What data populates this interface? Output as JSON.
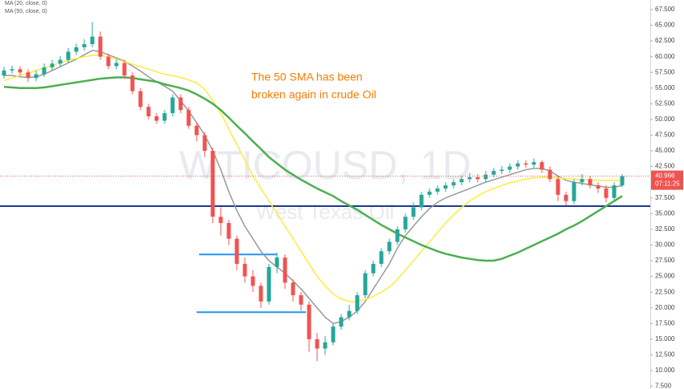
{
  "chart_data": {
    "type": "candlestick",
    "watermark": "WTICOUSD, 1D",
    "watermark_subtitle": "West Texas Oil",
    "annotation": [
      "The 50 SMA has been",
      "broken again in crude Oil"
    ],
    "annotation_color": "#f57c00",
    "up_color": "#26a69a",
    "down_color": "#ef5350",
    "ylim": [
      7.06,
      69.03
    ],
    "yticks": [
      {
        "value": 67.5,
        "label": "67.500"
      },
      {
        "value": 65,
        "label": "65.000"
      },
      {
        "value": 62.5,
        "label": "62.500"
      },
      {
        "value": 60,
        "label": "60.000"
      },
      {
        "value": 57.5,
        "label": "57.500"
      },
      {
        "value": 55,
        "label": "55.000"
      },
      {
        "value": 52.5,
        "label": "52.500"
      },
      {
        "value": 50,
        "label": "50.000"
      },
      {
        "value": 47.5,
        "label": "47.500"
      },
      {
        "value": 45,
        "label": "45.000"
      },
      {
        "value": 42.5,
        "label": "42.500"
      },
      {
        "value": 37.5,
        "label": "37.500"
      },
      {
        "value": 35,
        "label": "35.000"
      },
      {
        "value": 32.5,
        "label": "32.500"
      },
      {
        "value": 30,
        "label": "30.000"
      },
      {
        "value": 27.5,
        "label": "27.500"
      },
      {
        "value": 25,
        "label": "25.000"
      },
      {
        "value": 22.5,
        "label": "22.500"
      },
      {
        "value": 20,
        "label": "20.000"
      },
      {
        "value": 17.5,
        "label": "17.500"
      },
      {
        "value": 15,
        "label": "15.000"
      },
      {
        "value": 12.5,
        "label": "12.500"
      },
      {
        "value": 10,
        "label": "10.000"
      },
      {
        "value": 7.5,
        "label": "7.500"
      }
    ],
    "last_price": 40.966,
    "countdown": "07:11:25",
    "hlines": [
      {
        "value": 36.2,
        "color": "#1a3a8f"
      },
      {
        "value": 28.5,
        "color": "#2196f3"
      },
      {
        "value": 19.3,
        "color": "#2196f3"
      }
    ],
    "ohlc": [
      [
        57.0,
        58.4,
        56.5,
        57.8
      ],
      [
        57.8,
        58.6,
        57.3,
        58.0
      ],
      [
        58.0,
        58.5,
        57.0,
        57.5
      ],
      [
        57.5,
        58.0,
        56.0,
        56.6
      ],
      [
        56.6,
        57.8,
        56.1,
        57.2
      ],
      [
        57.2,
        58.9,
        56.8,
        58.3
      ],
      [
        58.3,
        59.5,
        57.8,
        58.9
      ],
      [
        58.9,
        60.1,
        58.4,
        59.5
      ],
      [
        59.5,
        61.4,
        59.0,
        60.8
      ],
      [
        60.8,
        62.1,
        60.3,
        61.5
      ],
      [
        61.5,
        62.8,
        61.0,
        62.0
      ],
      [
        62.0,
        65.5,
        61.5,
        63.2
      ],
      [
        63.2,
        64.0,
        59.5,
        60.0
      ],
      [
        60.0,
        60.5,
        58.0,
        58.5
      ],
      [
        58.5,
        59.6,
        58.0,
        59.0
      ],
      [
        59.0,
        59.5,
        56.5,
        57.0
      ],
      [
        57.0,
        57.5,
        54.0,
        54.5
      ],
      [
        54.5,
        55.0,
        51.5,
        52.0
      ],
      [
        52.0,
        52.5,
        50.0,
        50.5
      ],
      [
        50.5,
        51.0,
        49.3,
        49.8
      ],
      [
        49.8,
        51.5,
        49.3,
        51.0
      ],
      [
        51.0,
        54.0,
        50.5,
        53.5
      ],
      [
        53.5,
        54.0,
        51.0,
        51.5
      ],
      [
        51.5,
        52.0,
        48.5,
        49.0
      ],
      [
        49.0,
        49.5,
        46.5,
        47.5
      ],
      [
        47.5,
        48.0,
        44.0,
        45.0
      ],
      [
        45.0,
        45.5,
        33.5,
        34.5
      ],
      [
        34.5,
        36.0,
        31.5,
        33.5
      ],
      [
        33.5,
        34.0,
        30.0,
        31.0
      ],
      [
        31.0,
        31.5,
        26.0,
        27.0
      ],
      [
        27.0,
        28.0,
        24.0,
        25.0
      ],
      [
        25.0,
        26.0,
        22.5,
        23.5
      ],
      [
        23.5,
        24.0,
        20.0,
        21.0
      ],
      [
        21.0,
        27.0,
        20.5,
        26.5
      ],
      [
        26.5,
        28.8,
        25.5,
        28.0
      ],
      [
        28.0,
        28.5,
        23.0,
        24.0
      ],
      [
        24.0,
        24.5,
        21.0,
        22.0
      ],
      [
        22.0,
        22.5,
        19.5,
        20.5
      ],
      [
        20.5,
        21.0,
        13.0,
        15.0
      ],
      [
        15.0,
        16.0,
        11.5,
        13.5
      ],
      [
        13.5,
        15.5,
        12.5,
        14.5
      ],
      [
        14.5,
        17.5,
        14.0,
        17.0
      ],
      [
        17.0,
        19.0,
        16.5,
        18.5
      ],
      [
        18.5,
        20.5,
        18.0,
        19.5
      ],
      [
        19.5,
        22.5,
        19.0,
        22.0
      ],
      [
        22.0,
        26.0,
        21.5,
        25.5
      ],
      [
        25.5,
        27.5,
        25.0,
        27.0
      ],
      [
        27.0,
        29.5,
        26.5,
        29.0
      ],
      [
        29.0,
        31.0,
        28.5,
        30.5
      ],
      [
        30.5,
        33.0,
        30.0,
        32.5
      ],
      [
        32.5,
        35.0,
        32.0,
        34.5
      ],
      [
        34.5,
        36.8,
        34.0,
        36.0
      ],
      [
        36.0,
        38.5,
        35.5,
        38.0
      ],
      [
        38.0,
        39.0,
        37.5,
        38.5
      ],
      [
        38.5,
        39.5,
        38.0,
        39.0
      ],
      [
        39.0,
        40.0,
        38.5,
        39.5
      ],
      [
        39.5,
        40.5,
        39.0,
        40.0
      ],
      [
        40.0,
        41.0,
        39.5,
        40.5
      ],
      [
        40.5,
        41.5,
        40.0,
        40.8
      ],
      [
        40.8,
        41.3,
        40.0,
        40.5
      ],
      [
        40.5,
        41.8,
        40.0,
        41.2
      ],
      [
        41.2,
        42.3,
        40.8,
        41.8
      ],
      [
        41.8,
        42.6,
        41.3,
        42.0
      ],
      [
        42.0,
        43.0,
        41.5,
        42.5
      ],
      [
        42.5,
        43.5,
        42.0,
        43.0
      ],
      [
        43.0,
        43.5,
        42.3,
        42.8
      ],
      [
        42.8,
        43.8,
        42.3,
        43.2
      ],
      [
        43.2,
        43.5,
        41.5,
        42.0
      ],
      [
        42.0,
        42.5,
        40.0,
        40.5
      ],
      [
        40.5,
        41.0,
        37.0,
        38.0
      ],
      [
        38.0,
        38.5,
        36.3,
        37.0
      ],
      [
        37.0,
        40.5,
        36.5,
        40.0
      ],
      [
        40.0,
        41.3,
        39.5,
        40.5
      ],
      [
        40.5,
        41.0,
        39.0,
        39.5
      ],
      [
        39.5,
        40.0,
        38.3,
        39.0
      ],
      [
        39.0,
        39.5,
        36.8,
        37.5
      ],
      [
        37.5,
        40.0,
        37.0,
        39.5
      ],
      [
        39.5,
        41.3,
        39.2,
        40.966
      ]
    ],
    "series": [
      {
        "name": "MA (20, close, 0)",
        "color": "#999999",
        "values": [
          57.0,
          57.0,
          56.8,
          56.7,
          56.8,
          57.2,
          57.8,
          58.4,
          59.0,
          59.6,
          60.3,
          61.0,
          60.8,
          60.3,
          59.8,
          59.3,
          58.5,
          57.7,
          56.8,
          56.0,
          55.3,
          54.5,
          53.0,
          51.3,
          49.5,
          47.5,
          45.0,
          42.0,
          38.5,
          35.5,
          33.0,
          31.0,
          29.0,
          27.5,
          26.5,
          25.5,
          24.3,
          23.0,
          21.5,
          20.0,
          18.5,
          17.5,
          17.8,
          18.5,
          19.5,
          21.0,
          23.0,
          25.0,
          27.0,
          29.5,
          31.5,
          33.0,
          34.5,
          35.8,
          36.8,
          37.5,
          38.0,
          38.5,
          39.0,
          39.5,
          40.0,
          40.4,
          40.8,
          41.2,
          41.6,
          42.0,
          42.2,
          42.2,
          41.8,
          41.0,
          40.3,
          40.0,
          39.8,
          39.6,
          39.4,
          39.2,
          39.2,
          39.5
        ]
      },
      {
        "name": "MA (50, close, 0)",
        "color": "#ffeb3b",
        "values": [
          56.2,
          56.6,
          57.0,
          57.4,
          57.8,
          58.2,
          58.6,
          59.0,
          59.4,
          59.7,
          60.0,
          60.2,
          60.2,
          60.0,
          59.6,
          59.2,
          58.8,
          58.4,
          58.0,
          57.6,
          57.2,
          57.0,
          56.7,
          56.3,
          55.8,
          54.8,
          53.0,
          51.0,
          48.5,
          46.0,
          43.5,
          41.0,
          39.0,
          37.0,
          35.0,
          33.0,
          31.0,
          29.0,
          27.0,
          25.0,
          23.5,
          22.2,
          21.4,
          21.0,
          21.0,
          21.3,
          21.8,
          22.5,
          23.3,
          24.5,
          26.0,
          27.5,
          29.0,
          30.5,
          32.0,
          33.5,
          34.8,
          36.0,
          37.0,
          37.8,
          38.5,
          39.0,
          39.5,
          39.9,
          40.2,
          40.5,
          40.7,
          40.8,
          40.8,
          40.7,
          40.6,
          40.5,
          40.4,
          40.4,
          40.3,
          40.3,
          40.3,
          40.3
        ]
      },
      {
        "color": "#4caf50",
        "values": [
          55.2,
          55.1,
          55.0,
          55.0,
          55.0,
          55.1,
          55.3,
          55.5,
          55.7,
          55.9,
          56.1,
          56.3,
          56.5,
          56.6,
          56.7,
          56.7,
          56.6,
          56.4,
          56.2,
          56.0,
          55.6,
          55.3,
          55.0,
          54.6,
          54.0,
          53.3,
          52.5,
          51.5,
          50.3,
          49.0,
          47.8,
          46.5,
          45.3,
          44.0,
          43.0,
          42.0,
          41.2,
          40.4,
          39.7,
          39.0,
          38.4,
          37.8,
          37.0,
          36.3,
          35.6,
          34.8,
          34.0,
          33.2,
          32.5,
          31.8,
          31.2,
          30.6,
          30.0,
          29.5,
          29.0,
          28.6,
          28.3,
          28.0,
          27.8,
          27.6,
          27.5,
          27.5,
          27.8,
          28.3,
          28.8,
          29.4,
          30.0,
          30.6,
          31.2,
          31.8,
          32.5,
          33.1,
          33.8,
          34.6,
          35.4,
          36.2,
          37.0,
          37.8
        ]
      }
    ]
  }
}
